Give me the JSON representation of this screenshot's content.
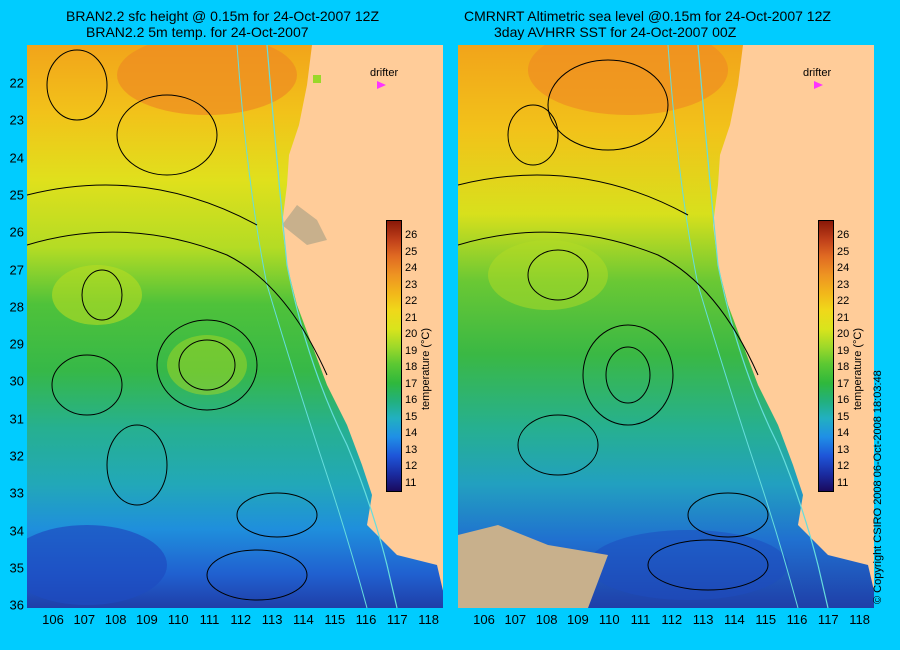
{
  "left_panel": {
    "title_line1": "BRAN2.2 sfc height @ 0.15m for 24-Oct-2007 12Z",
    "title_line2": "BRAN2.2 5m temp. for 24-Oct-2007",
    "drifter_label": "drifter"
  },
  "right_panel": {
    "title_line1": "CMRNRT Altimetric sea level  @0.15m  for 24-Oct-2007 12Z",
    "title_line2": "3day AVHRR SST for 24-Oct-2007 00Z",
    "drifter_label": "drifter"
  },
  "latitude_labels": [
    "22",
    "23",
    "24",
    "25",
    "26",
    "27",
    "28",
    "29",
    "30",
    "31",
    "32",
    "33",
    "34",
    "35",
    "36"
  ],
  "longitude_labels": [
    "106",
    "107",
    "108",
    "109",
    "110",
    "111",
    "112",
    "113",
    "114",
    "115",
    "116",
    "117",
    "118"
  ],
  "colorbar": {
    "label": "temperature (°C)",
    "ticks": [
      "26",
      "25",
      "24",
      "23",
      "22",
      "21",
      "20",
      "19",
      "18",
      "17",
      "16",
      "15",
      "14",
      "13",
      "12",
      "11"
    ]
  },
  "copyright": "© Copyright CSIRO 2008    06-Oct-2008 18:03:48",
  "colors": {
    "background": "#00ccff",
    "land": "#ffcc99",
    "contour": "#000000",
    "isobath": "#66dddd",
    "drifter": "#ff33ff"
  }
}
